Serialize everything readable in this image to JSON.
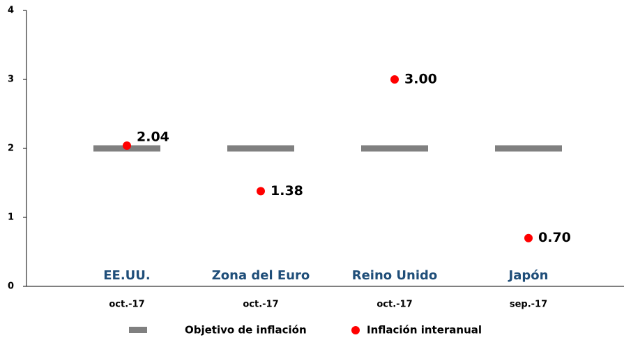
{
  "chart_data": {
    "type": "dot-target",
    "categories": [
      "oct.-17",
      "oct.-17",
      "oct.-17",
      "sep.-17"
    ],
    "regions": [
      "EE.UU.",
      "Zona del Euro",
      "Reino Unido",
      "Japón"
    ],
    "series": [
      {
        "name": "Objetivo de inflación",
        "color": "#808080",
        "values": [
          2,
          2,
          2,
          2
        ]
      },
      {
        "name": "Inflación interanual",
        "color": "#ff0000",
        "values": [
          2.04,
          1.38,
          3.0,
          0.7
        ],
        "value_labels": [
          "2.04",
          "1.38",
          "3.00",
          "0.70"
        ]
      }
    ],
    "ylim": [
      0,
      4
    ],
    "yticks": [
      0,
      1,
      2,
      3,
      4
    ],
    "grid": false
  }
}
